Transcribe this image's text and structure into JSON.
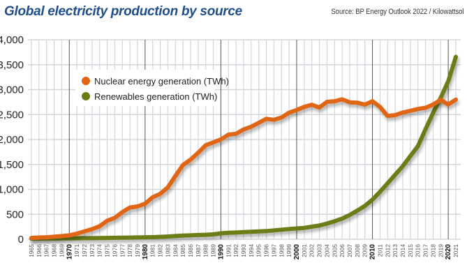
{
  "header": {
    "title": "Global electricity production by source",
    "source": "Source:  BP Energy Outlook 2022 / Kilowattsol"
  },
  "chart_data": {
    "type": "line",
    "title": "Global electricity production by source",
    "xlabel": "",
    "ylabel": "",
    "x": [
      1965,
      1966,
      1967,
      1968,
      1969,
      1970,
      1971,
      1972,
      1973,
      1974,
      1975,
      1976,
      1977,
      1978,
      1979,
      1980,
      1981,
      1982,
      1983,
      1984,
      1985,
      1986,
      1987,
      1988,
      1989,
      1990,
      1991,
      1992,
      1993,
      1994,
      1995,
      1996,
      1997,
      1998,
      1999,
      2000,
      2001,
      2002,
      2003,
      2004,
      2005,
      2006,
      2007,
      2008,
      2009,
      2010,
      2011,
      2012,
      2013,
      2014,
      2015,
      2016,
      2017,
      2018,
      2019,
      2020,
      2021
    ],
    "xlim": [
      1965,
      2021
    ],
    "ylim": [
      0,
      4000
    ],
    "yticks": [
      "0",
      "500",
      "1,000",
      "1,500",
      "2,000",
      "2,500",
      "3,000",
      "3,500",
      "4,000"
    ],
    "grid": true,
    "legend_position": "top-left",
    "series": [
      {
        "name": "Nuclear energy generation (TWh)",
        "color": "#e06614",
        "values": [
          26,
          35,
          41,
          51,
          63,
          79,
          112,
          156,
          203,
          262,
          372,
          430,
          544,
          637,
          657,
          714,
          842,
          912,
          1041,
          1270,
          1488,
          1597,
          1734,
          1885,
          1942,
          2001,
          2098,
          2115,
          2201,
          2256,
          2335,
          2415,
          2395,
          2442,
          2537,
          2591,
          2654,
          2696,
          2640,
          2755,
          2768,
          2806,
          2746,
          2737,
          2699,
          2768,
          2652,
          2472,
          2490,
          2541,
          2575,
          2613,
          2636,
          2701,
          2796,
          2700,
          2800
        ]
      },
      {
        "name": "Renewables generation (TWh)",
        "color": "#6b7d12",
        "values": [
          13,
          14,
          15,
          16,
          17,
          19,
          20,
          22,
          23,
          25,
          27,
          29,
          31,
          34,
          36,
          38,
          42,
          47,
          55,
          64,
          73,
          79,
          85,
          90,
          98,
          119,
          128,
          134,
          142,
          150,
          156,
          164,
          178,
          192,
          205,
          217,
          228,
          253,
          276,
          314,
          361,
          414,
          487,
          575,
          668,
          794,
          953,
          1121,
          1294,
          1466,
          1669,
          1867,
          2207,
          2531,
          2836,
          3166,
          3657
        ]
      }
    ]
  }
}
